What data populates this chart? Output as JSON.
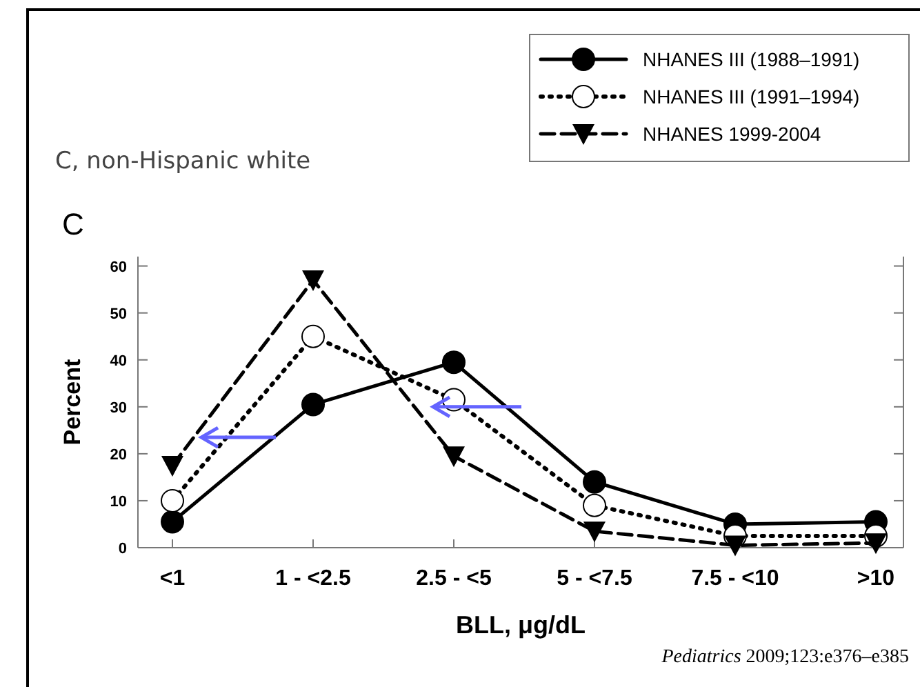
{
  "chart_data": {
    "type": "line",
    "title": "C, non-Hispanic white",
    "xlabel": "BLL, μg/dL",
    "ylabel": "Percent",
    "categories": [
      "<1",
      "1 - <2.5",
      "2.5 - <5",
      "5 - <7.5",
      "7.5 - <10",
      ">10"
    ],
    "series": [
      {
        "name": "NHANES III (1988–1991)",
        "color": "#000000",
        "marker": "circle",
        "line_style": "solid",
        "values": [
          5.5,
          30.5,
          39.5,
          14,
          5,
          5.5
        ]
      },
      {
        "name": "NHANES III (1991–1994)",
        "color": "#000000",
        "marker": "circle",
        "line_style": "dotted",
        "values": [
          10,
          45,
          31.5,
          9,
          2.5,
          2.5
        ]
      },
      {
        "name": "NHANES 1999-2004",
        "color": "#000000",
        "marker": "triangle",
        "line_style": "dashed",
        "values": [
          17.5,
          57,
          19.5,
          3.5,
          0.5,
          1
        ]
      }
    ],
    "ylim": [
      0,
      62
    ],
    "yticks": [
      0,
      10,
      20,
      30,
      40,
      50,
      60
    ],
    "legend": "top right",
    "grid": false,
    "annotations": [
      "C",
      "Pediatrics 2009;123:e376–e385"
    ]
  }
}
